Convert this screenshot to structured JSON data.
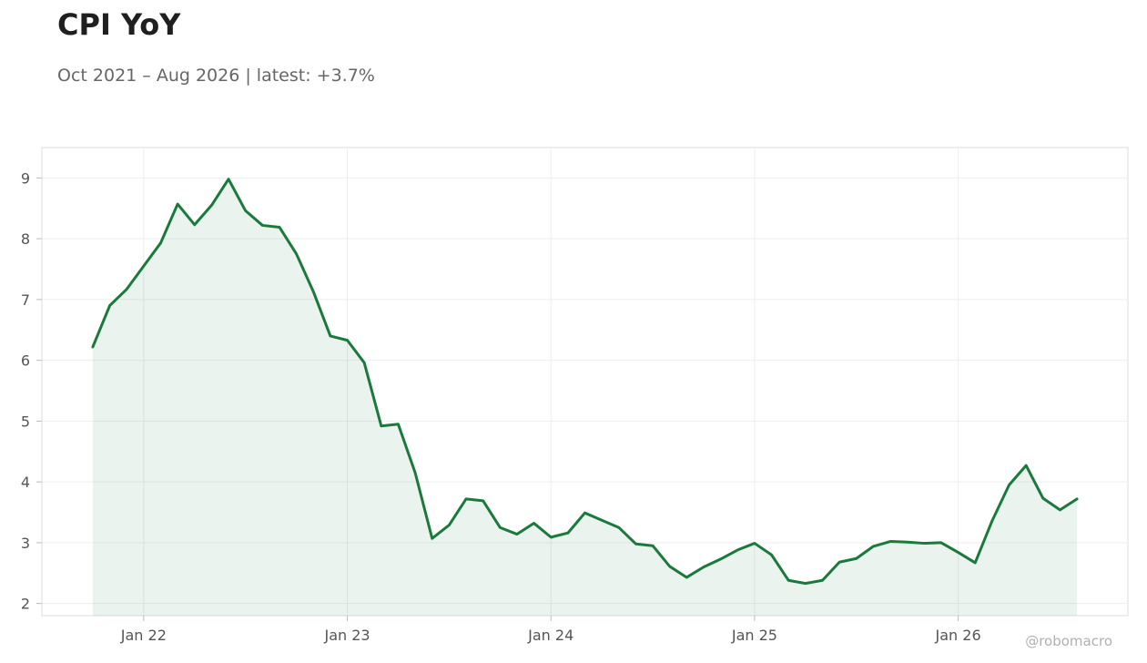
{
  "header": {
    "title": "CPI YoY",
    "subtitle": "Oct 2021 – Aug 2026 | latest: +3.7%"
  },
  "watermark": "@robomacro",
  "chart_data": {
    "type": "area",
    "title": "CPI YoY",
    "subtitle": "Oct 2021 – Aug 2026 | latest: +3.7%",
    "xlabel": "",
    "ylabel": "",
    "x_tick_labels": [
      "Jan 22",
      "Jan 23",
      "Jan 24",
      "Jan 25",
      "Jan 26"
    ],
    "x_tick_dates": [
      "2022-01",
      "2023-01",
      "2024-01",
      "2025-01",
      "2026-01"
    ],
    "y_ticks": [
      2,
      3,
      4,
      5,
      6,
      7,
      8,
      9
    ],
    "xlim": [
      "2021-07",
      "2026-11"
    ],
    "ylim": [
      1.8,
      9.5
    ],
    "grid": true,
    "legend": "none",
    "colors": {
      "line": "#1a7a3c",
      "fill": "#1a7a3c"
    },
    "series": [
      {
        "x": [
          "2021-10",
          "2021-11",
          "2021-12",
          "2022-01",
          "2022-02",
          "2022-03",
          "2022-04",
          "2022-05",
          "2022-06",
          "2022-07",
          "2022-08",
          "2022-09",
          "2022-10",
          "2022-11",
          "2022-12",
          "2023-01",
          "2023-02",
          "2023-03",
          "2023-04",
          "2023-05",
          "2023-06",
          "2023-07",
          "2023-08",
          "2023-09",
          "2023-10",
          "2023-11",
          "2023-12",
          "2024-01",
          "2024-02",
          "2024-03",
          "2024-04",
          "2024-05",
          "2024-06",
          "2024-07",
          "2024-08",
          "2024-09",
          "2024-10",
          "2024-11",
          "2024-12",
          "2025-01",
          "2025-02",
          "2025-03",
          "2025-04",
          "2025-05",
          "2025-06",
          "2025-07",
          "2025-08",
          "2025-09",
          "2025-10",
          "2025-11",
          "2025-12",
          "2026-01",
          "2026-02",
          "2026-03",
          "2026-04",
          "2026-05",
          "2026-06",
          "2026-07",
          "2026-08"
        ],
        "values": [
          6.22,
          6.9,
          7.17,
          7.55,
          7.93,
          8.57,
          8.23,
          8.55,
          8.98,
          8.46,
          8.22,
          8.19,
          7.75,
          7.13,
          6.4,
          6.33,
          5.96,
          4.92,
          4.95,
          4.15,
          3.07,
          3.29,
          3.72,
          3.69,
          3.25,
          3.14,
          3.32,
          3.09,
          3.16,
          3.49,
          3.37,
          3.25,
          2.98,
          2.95,
          2.61,
          2.43,
          2.6,
          2.73,
          2.88,
          2.99,
          2.8,
          2.38,
          2.33,
          2.38,
          2.68,
          2.74,
          2.94,
          3.02,
          3.01,
          2.99,
          3.0,
          2.84,
          2.67,
          3.36,
          3.95,
          4.27,
          3.73,
          3.54,
          3.72
        ]
      }
    ]
  }
}
